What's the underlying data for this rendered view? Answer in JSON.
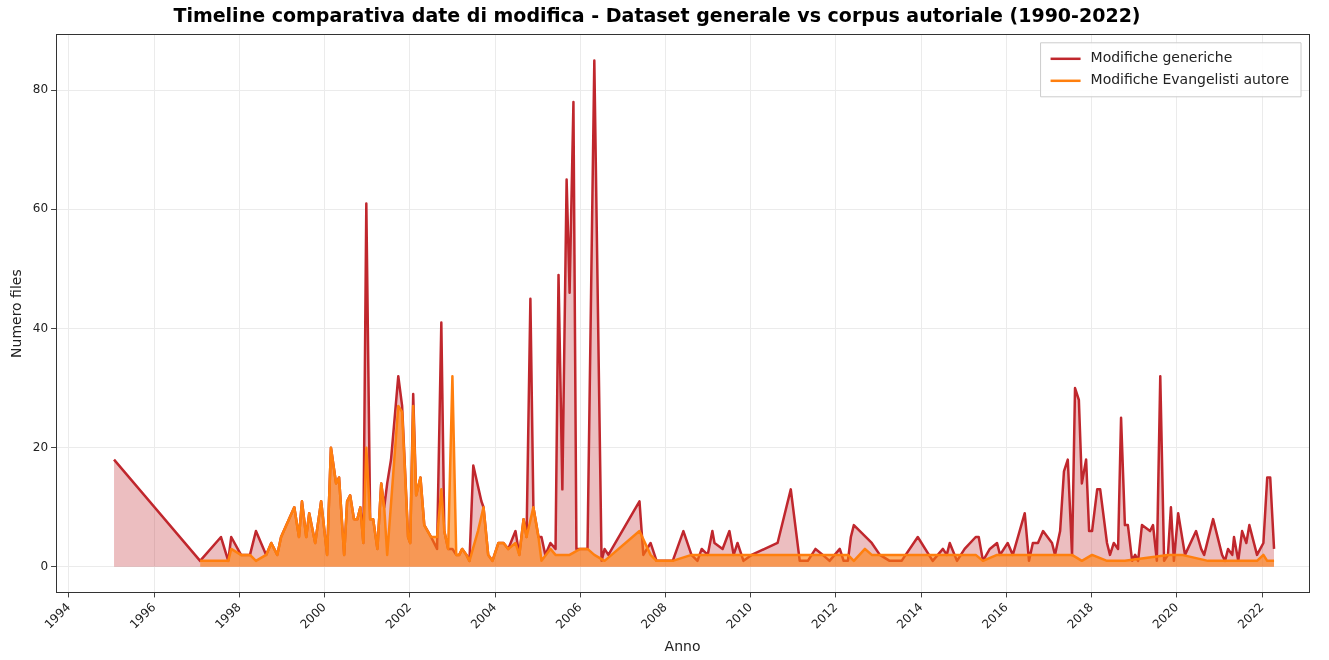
{
  "chart_data": {
    "type": "area",
    "title": "Timeline comparativa date di modifica - Dataset generale vs corpus autoriale (1990-2022)",
    "xlabel": "Anno",
    "ylabel": "Numero files",
    "xlim": [
      1993.7,
      2023.1
    ],
    "xticks": [
      1994,
      1996,
      1998,
      2000,
      2002,
      2004,
      2006,
      2008,
      2010,
      2012,
      2014,
      2016,
      2018,
      2020,
      2022
    ],
    "ylim": [
      -4.3,
      89.3
    ],
    "yticks": [
      0,
      20,
      40,
      60,
      80
    ],
    "grid": true,
    "legend": "top right",
    "marker": "none",
    "line_style": "solid",
    "series": [
      {
        "name": "Modifiche generiche",
        "color": "#c0272d",
        "x": [
          1995.06,
          1997.08,
          1997.57,
          1997.74,
          1997.81,
          1998.04,
          1998.25,
          1998.39,
          1998.63,
          1998.75,
          1998.89,
          1998.98,
          1999.29,
          1999.4,
          1999.47,
          1999.57,
          1999.64,
          1999.78,
          1999.92,
          2000.06,
          2000.15,
          2000.27,
          2000.34,
          2000.46,
          2000.53,
          2000.6,
          2000.69,
          2000.77,
          2000.84,
          2000.91,
          2000.98,
          2001.07,
          2001.14,
          2001.24,
          2001.33,
          2001.4,
          2001.47,
          2001.56,
          2001.73,
          2001.82,
          2001.96,
          2002.01,
          2002.08,
          2002.15,
          2002.25,
          2002.34,
          2002.5,
          2002.64,
          2002.74,
          2002.81,
          2002.9,
          2003.0,
          2003.09,
          2003.16,
          2003.23,
          2003.33,
          2003.4,
          2003.49,
          2003.68,
          2003.73,
          2003.84,
          2003.94,
          2004.08,
          2004.2,
          2004.31,
          2004.48,
          2004.57,
          2004.67,
          2004.74,
          2004.83,
          2004.9,
          2005.02,
          2005.09,
          2005.18,
          2005.3,
          2005.42,
          2005.49,
          2005.58,
          2005.68,
          2005.75,
          2005.84,
          2005.91,
          2006.17,
          2006.33,
          2006.5,
          2006.57,
          2006.66,
          2007.39,
          2007.48,
          2007.65,
          2007.79,
          2007.98,
          2008.17,
          2008.42,
          2008.61,
          2008.75,
          2008.85,
          2008.99,
          2009.1,
          2009.15,
          2009.34,
          2009.5,
          2009.6,
          2009.69,
          2009.83,
          2010.02,
          2010.63,
          2010.94,
          2011.15,
          2011.34,
          2011.52,
          2011.69,
          2011.85,
          2012.09,
          2012.18,
          2012.28,
          2012.35,
          2012.42,
          2012.84,
          2013.03,
          2013.26,
          2013.54,
          2013.92,
          2014.27,
          2014.51,
          2014.6,
          2014.67,
          2014.84,
          2015.02,
          2015.28,
          2015.35,
          2015.45,
          2015.61,
          2015.78,
          2015.85,
          2016.03,
          2016.15,
          2016.43,
          2016.53,
          2016.62,
          2016.74,
          2016.86,
          2017.07,
          2017.14,
          2017.26,
          2017.35,
          2017.44,
          2017.54,
          2017.61,
          2017.7,
          2017.77,
          2017.87,
          2017.94,
          2018.01,
          2018.13,
          2018.2,
          2018.36,
          2018.43,
          2018.52,
          2018.62,
          2018.69,
          2018.78,
          2018.85,
          2018.95,
          2019.02,
          2019.09,
          2019.18,
          2019.37,
          2019.44,
          2019.53,
          2019.61,
          2019.7,
          2019.79,
          2019.86,
          2019.93,
          2020.03,
          2020.19,
          2020.45,
          2020.57,
          2020.64,
          2020.85,
          2021.06,
          2021.13,
          2021.2,
          2021.3,
          2021.34,
          2021.44,
          2021.53,
          2021.63,
          2021.7,
          2021.88,
          2022.03,
          2022.12,
          2022.19,
          2022.28
        ],
        "values": [
          18,
          1,
          5,
          1,
          5,
          2,
          2,
          6,
          2,
          4,
          2,
          5,
          10,
          5,
          11,
          5,
          9,
          4,
          11,
          2,
          20,
          14,
          15,
          2,
          11,
          12,
          8,
          8,
          10,
          4,
          61,
          8,
          8,
          3,
          14,
          10,
          14,
          18,
          32,
          27,
          5,
          4,
          29,
          12,
          15,
          7,
          5,
          3,
          41,
          6,
          3,
          3,
          2,
          2,
          3,
          2,
          1,
          17,
          11,
          10,
          2,
          1,
          4,
          4,
          3,
          6,
          2,
          8,
          5,
          45,
          10,
          5,
          5,
          2,
          4,
          3,
          49,
          13,
          65,
          46,
          78,
          3,
          3,
          85,
          1,
          3,
          2,
          11,
          2,
          4,
          1,
          1,
          1,
          6,
          2,
          1,
          3,
          2,
          6,
          4,
          3,
          6,
          2,
          4,
          1,
          2,
          4,
          13,
          1,
          1,
          3,
          2,
          1,
          3,
          1,
          1,
          5,
          7,
          4,
          2,
          1,
          1,
          5,
          1,
          3,
          2,
          4,
          1,
          3,
          5,
          5,
          1,
          3,
          4,
          2,
          4,
          2,
          9,
          1,
          4,
          4,
          6,
          4,
          2,
          6,
          16,
          18,
          2,
          30,
          28,
          14,
          18,
          6,
          6,
          13,
          13,
          4,
          2,
          4,
          3,
          25,
          7,
          7,
          1,
          2,
          1,
          7,
          6,
          7,
          1,
          32,
          1,
          2,
          10,
          1,
          9,
          2,
          6,
          3,
          2,
          8,
          2,
          1,
          3,
          2,
          5,
          1,
          6,
          4,
          7,
          2,
          4,
          15,
          15,
          3
        ]
      },
      {
        "name": "Modifiche Evangelisti autore",
        "color": "#ff7f0e",
        "x": [
          1997.08,
          1997.74,
          1997.81,
          1998.04,
          1998.25,
          1998.39,
          1998.63,
          1998.75,
          1998.89,
          1998.98,
          1999.29,
          1999.4,
          1999.47,
          1999.57,
          1999.64,
          1999.78,
          1999.92,
          2000.06,
          2000.15,
          2000.27,
          2000.34,
          2000.46,
          2000.53,
          2000.6,
          2000.69,
          2000.77,
          2000.84,
          2000.91,
          2000.98,
          2001.07,
          2001.14,
          2001.24,
          2001.33,
          2001.4,
          2001.47,
          2001.73,
          2001.82,
          2001.96,
          2002.01,
          2002.08,
          2002.15,
          2002.25,
          2002.34,
          2002.5,
          2002.64,
          2002.74,
          2002.81,
          2002.9,
          2003.0,
          2003.09,
          2003.16,
          2003.23,
          2003.33,
          2003.4,
          2003.6,
          2003.73,
          2003.84,
          2003.94,
          2004.08,
          2004.2,
          2004.31,
          2004.48,
          2004.57,
          2004.67,
          2004.74,
          2004.9,
          2005.02,
          2005.09,
          2005.3,
          2005.42,
          2005.75,
          2006.0,
          2006.17,
          2006.33,
          2006.57,
          2007.39,
          2007.65,
          2007.79,
          2008.17,
          2008.61,
          2009.0,
          2012.09,
          2012.28,
          2012.42,
          2012.68,
          2012.84,
          2015.28,
          2015.45,
          2015.78,
          2017.54,
          2017.77,
          2018.01,
          2018.36,
          2018.78,
          2019.79,
          2020.12,
          2020.73,
          2021.2,
          2021.88,
          2022.03,
          2022.12,
          2022.28
        ],
        "values": [
          1,
          1,
          3,
          2,
          2,
          1,
          2,
          4,
          2,
          5,
          10,
          5,
          11,
          5,
          9,
          4,
          11,
          2,
          20,
          14,
          15,
          2,
          11,
          12,
          8,
          8,
          10,
          4,
          20,
          8,
          8,
          3,
          14,
          10,
          2,
          27,
          26,
          5,
          4,
          27,
          12,
          15,
          7,
          5,
          5,
          13,
          6,
          3,
          32,
          2,
          2,
          3,
          2,
          1,
          6,
          10,
          2,
          1,
          4,
          4,
          3,
          4,
          2,
          8,
          5,
          10,
          5,
          1,
          3,
          2,
          2,
          3,
          3,
          2,
          1,
          6,
          2,
          1,
          1,
          2,
          2,
          2,
          2,
          1,
          3,
          2,
          2,
          1,
          2,
          2,
          1,
          2,
          1,
          1,
          2,
          2,
          1,
          1,
          1,
          2,
          1,
          1
        ]
      }
    ]
  }
}
